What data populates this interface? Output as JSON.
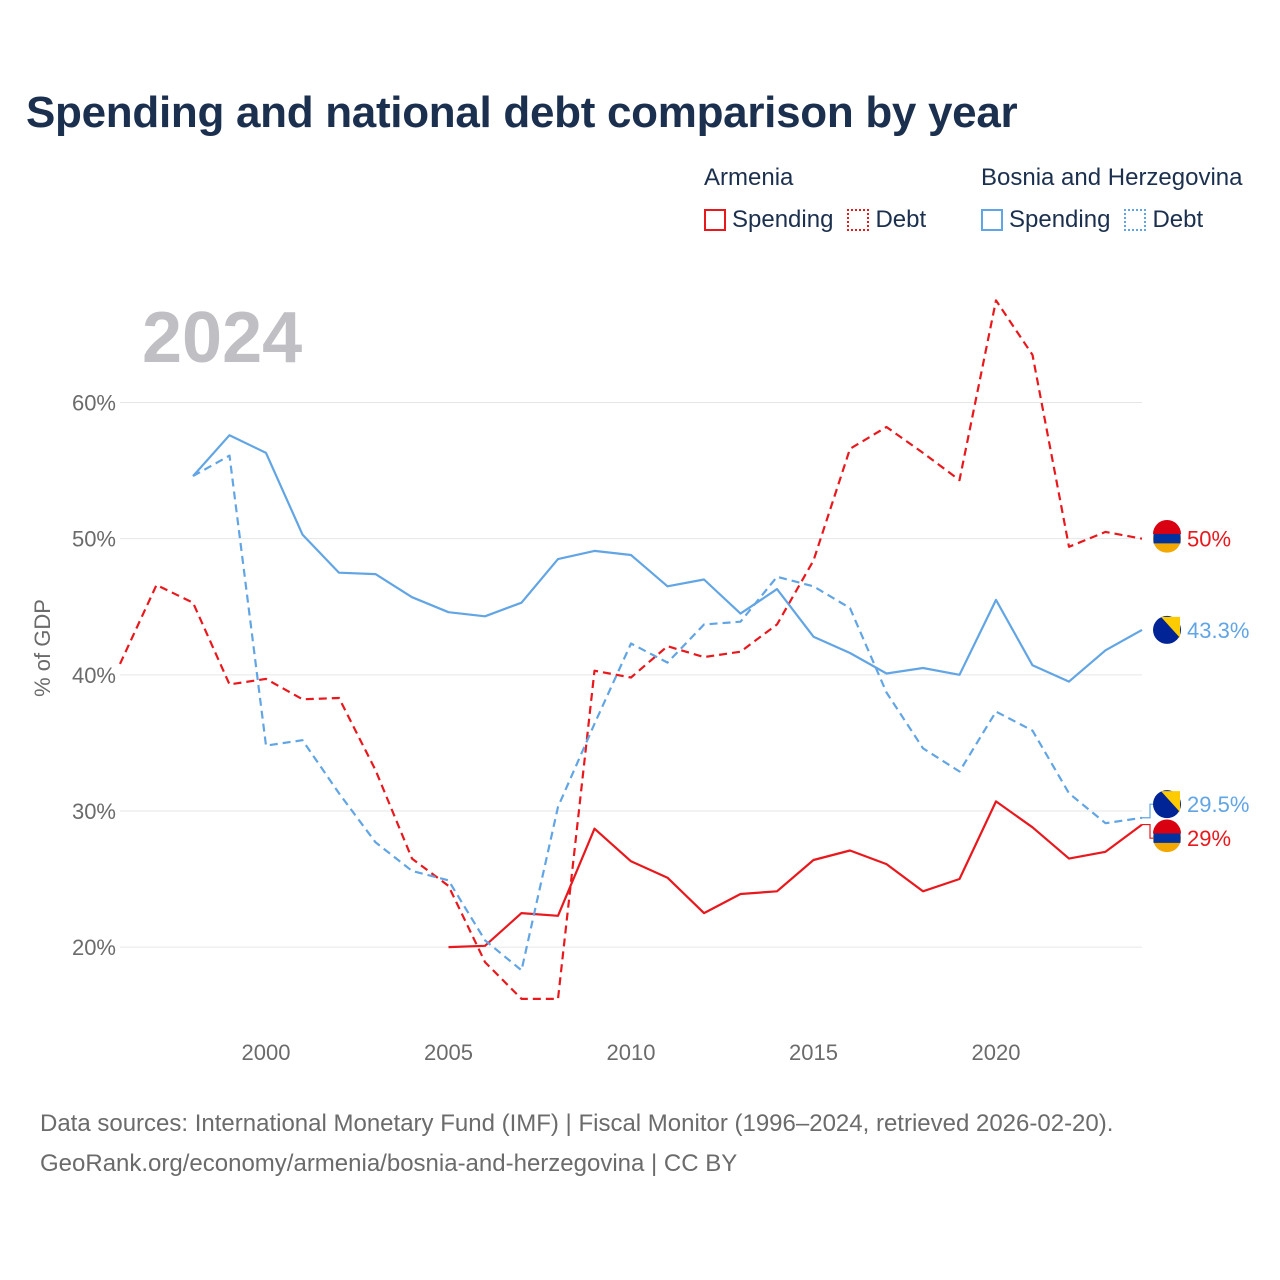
{
  "title": "Spending and national debt comparison by year",
  "legend": {
    "armenia": {
      "country": "Armenia",
      "spending": "Spending",
      "debt": "Debt"
    },
    "bosnia": {
      "country": "Bosnia and Herzegovina",
      "spending": "Spending",
      "debt": "Debt"
    }
  },
  "colors": {
    "armenia": "#e8181d",
    "bosnia": "#62a5e4",
    "grid": "#e6e6e6",
    "axis_text": "#6b6b6b",
    "year_label": "#c0c0c4"
  },
  "source": {
    "line1": "Data sources: International Monetary Fund (IMF) | Fiscal Monitor (1996–2024, retrieved 2026-02-20).",
    "line2": "GeoRank.org/economy/armenia/bosnia-and-herzegovina | CC BY"
  },
  "chart_data": {
    "type": "line",
    "year_label": "2024",
    "ylabel": "% of GDP",
    "xlim": [
      1996,
      2024
    ],
    "ylim": [
      14.5,
      69
    ],
    "x_ticks": [
      2000,
      2005,
      2010,
      2015,
      2020
    ],
    "y_ticks": [
      20,
      30,
      40,
      50,
      60
    ],
    "y_tick_labels": [
      "20%",
      "30%",
      "40%",
      "50%",
      "60%"
    ],
    "series": [
      {
        "name": "Armenia Debt",
        "country": "armenia",
        "dashed": true,
        "x": [
          1996,
          1997,
          1998,
          1999,
          2000,
          2001,
          2002,
          2003,
          2004,
          2005,
          2006,
          2007,
          2008,
          2009,
          2010,
          2011,
          2012,
          2013,
          2014,
          2015,
          2016,
          2017,
          2018,
          2019,
          2020,
          2021,
          2022,
          2023,
          2024
        ],
        "values": [
          40.8,
          46.6,
          45.3,
          39.3,
          39.7,
          38.2,
          38.3,
          33.0,
          26.5,
          24.5,
          18.9,
          16.2,
          16.2,
          40.3,
          39.8,
          42.1,
          41.3,
          41.7,
          43.7,
          48.4,
          56.6,
          58.2,
          56.3,
          54.3,
          67.5,
          63.5,
          49.4,
          50.5,
          50.0
        ],
        "end_label": "50%"
      },
      {
        "name": "Armenia Spending",
        "country": "armenia",
        "dashed": false,
        "x": [
          2005,
          2006,
          2007,
          2008,
          2009,
          2010,
          2011,
          2012,
          2013,
          2014,
          2015,
          2016,
          2017,
          2018,
          2019,
          2020,
          2021,
          2022,
          2023,
          2024
        ],
        "values": [
          20.0,
          20.1,
          22.5,
          22.3,
          28.7,
          26.3,
          25.1,
          22.5,
          23.9,
          24.1,
          26.4,
          27.1,
          26.1,
          24.1,
          25.0,
          30.7,
          28.8,
          26.5,
          27.0,
          29.0
        ],
        "end_label": "29%"
      },
      {
        "name": "Bosnia and Herzegovina Spending",
        "country": "bosnia",
        "dashed": false,
        "x": [
          1998,
          1999,
          2000,
          2001,
          2002,
          2003,
          2004,
          2005,
          2006,
          2007,
          2008,
          2009,
          2010,
          2011,
          2012,
          2013,
          2014,
          2015,
          2016,
          2017,
          2018,
          2019,
          2020,
          2021,
          2022,
          2023,
          2024
        ],
        "values": [
          54.6,
          57.6,
          56.3,
          50.3,
          47.5,
          47.4,
          45.7,
          44.6,
          44.3,
          45.3,
          48.5,
          49.1,
          48.8,
          46.5,
          47.0,
          44.5,
          46.3,
          42.8,
          41.6,
          40.1,
          40.5,
          40.0,
          45.5,
          40.7,
          39.5,
          41.8,
          43.3
        ],
        "end_label": "43.3%"
      },
      {
        "name": "Bosnia and Herzegovina Debt",
        "country": "bosnia",
        "dashed": true,
        "x": [
          1998,
          1999,
          2000,
          2001,
          2002,
          2003,
          2004,
          2005,
          2006,
          2007,
          2008,
          2009,
          2010,
          2011,
          2012,
          2013,
          2014,
          2015,
          2016,
          2017,
          2018,
          2019,
          2020,
          2021,
          2022,
          2023,
          2024
        ],
        "values": [
          54.6,
          56.1,
          34.8,
          35.2,
          31.3,
          27.7,
          25.6,
          24.9,
          20.5,
          18.3,
          30.3,
          36.4,
          42.3,
          40.9,
          43.7,
          43.9,
          47.2,
          46.5,
          44.9,
          38.7,
          34.6,
          32.9,
          37.3,
          35.9,
          31.3,
          29.1,
          29.5
        ],
        "end_label": "29.5%"
      }
    ]
  }
}
